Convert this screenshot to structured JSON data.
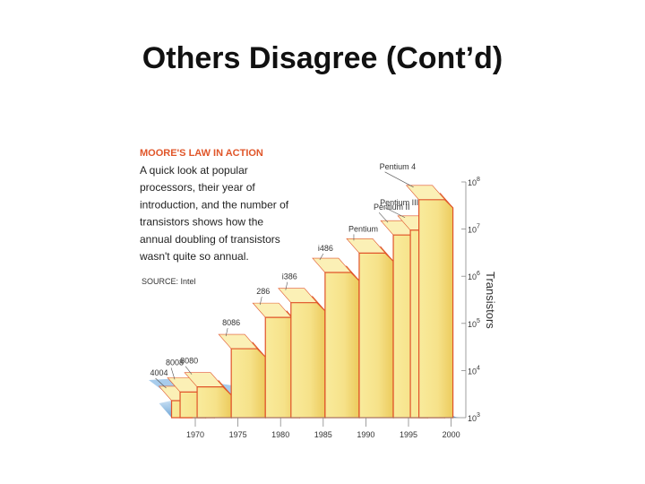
{
  "slide": {
    "title": "Others Disagree (Cont’d)"
  },
  "chart_data": {
    "type": "bar",
    "title": "MOORE'S LAW IN ACTION",
    "subtitle_lines": [
      "A quick look at popular",
      "processors, their year of",
      "introduction, and the number of",
      "transistors shows how the",
      "annual doubling of transistors",
      "wasn't quite so annual."
    ],
    "source": "SOURCE: Intel",
    "ylabel": "Transistors",
    "yscale": "log",
    "ylim": [
      1000,
      100000000
    ],
    "y_ticks": [
      {
        "value": 1000,
        "base": "10",
        "exp": "3"
      },
      {
        "value": 10000,
        "base": "10",
        "exp": "4"
      },
      {
        "value": 100000,
        "base": "10",
        "exp": "5"
      },
      {
        "value": 1000000,
        "base": "10",
        "exp": "6"
      },
      {
        "value": 10000000,
        "base": "10",
        "exp": "7"
      },
      {
        "value": 100000000,
        "base": "10",
        "exp": "8"
      }
    ],
    "xlim": [
      1970,
      2000
    ],
    "x_ticks": [
      "1970",
      "1975",
      "1980",
      "1985",
      "1990",
      "1995",
      "2000"
    ],
    "processors": [
      {
        "name": "4004",
        "year": 1971,
        "transistors": 2300
      },
      {
        "name": "8008",
        "year": 1972,
        "transistors": 3500
      },
      {
        "name": "8080",
        "year": 1974,
        "transistors": 4500
      },
      {
        "name": "8086",
        "year": 1978,
        "transistors": 29000
      },
      {
        "name": "286",
        "year": 1982,
        "transistors": 134000
      },
      {
        "name": "i386",
        "year": 1985,
        "transistors": 275000
      },
      {
        "name": "i486",
        "year": 1989,
        "transistors": 1200000
      },
      {
        "name": "Pentium",
        "year": 1993,
        "transistors": 3100000
      },
      {
        "name": "Pentium II",
        "year": 1997,
        "transistors": 7500000
      },
      {
        "name": "Pentium III",
        "year": 1999,
        "transistors": 9500000
      },
      {
        "name": "Pentium 4",
        "year": 2000,
        "transistors": 42000000
      }
    ],
    "colors": {
      "heading": "#e0562a",
      "bar_fill": "#f6e48c",
      "bar_edge": "#e0542a",
      "shadow": "#6aa5d6",
      "floor": "#a8ccec"
    }
  }
}
